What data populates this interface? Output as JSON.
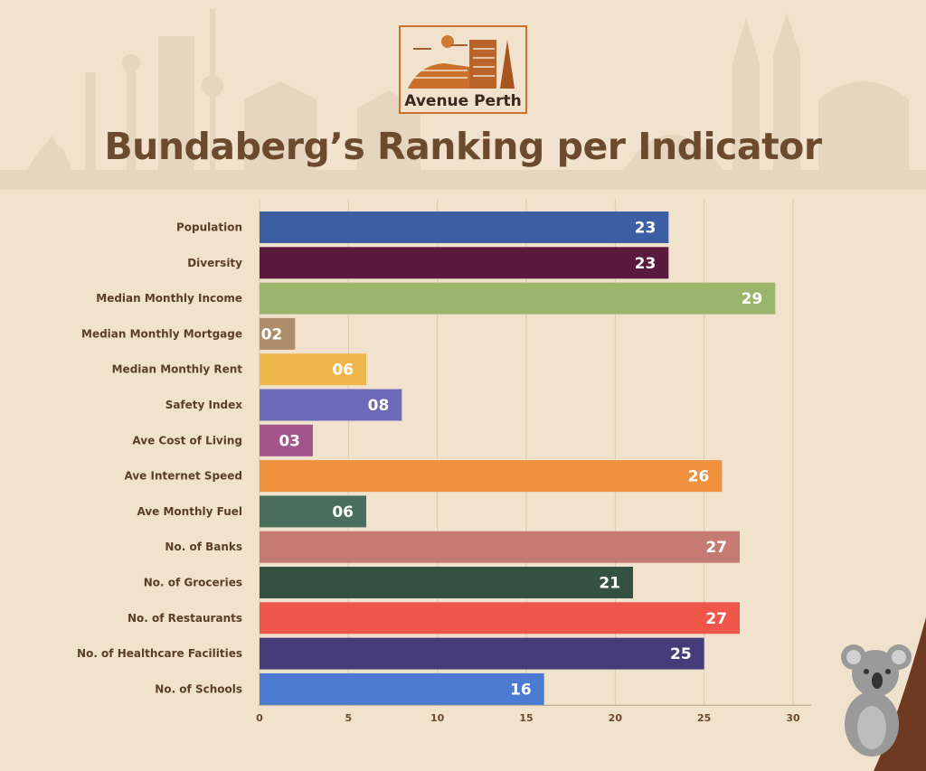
{
  "brand": {
    "name": "Avenue Perth",
    "logo_icon": "city-skyline-logo-icon",
    "accent": "#c9712c"
  },
  "header": {
    "title": "Bundaberg’s Ranking per Indicator"
  },
  "decor": {
    "skyline_icon": "city-skyline-icon",
    "mascot_icon": "koala-icon"
  },
  "chart_data": {
    "type": "bar",
    "orientation": "horizontal",
    "title": "Bundaberg’s Ranking per Indicator",
    "categories": [
      "Population",
      "Diversity",
      "Median Monthly Income",
      "Median Monthly Mortgage",
      "Median Monthly Rent",
      "Safety Index",
      "Ave Cost of Living",
      "Ave Internet Speed",
      "Ave Monthly Fuel",
      "No. of Banks",
      "No. of Groceries",
      "No. of Restaurants",
      "No. of Healthcare Facilities",
      "No. of Schools"
    ],
    "values": [
      23,
      23,
      29,
      2,
      6,
      8,
      3,
      26,
      6,
      27,
      21,
      27,
      25,
      16
    ],
    "value_labels": [
      "23",
      "23",
      "29",
      "02",
      "06",
      "08",
      "03",
      "26",
      "06",
      "27",
      "21",
      "27",
      "25",
      "16"
    ],
    "colors": [
      "#3c5ea3",
      "#5a1a3e",
      "#9bb56c",
      "#ad8d6a",
      "#f0b84c",
      "#6b69b8",
      "#a2548b",
      "#f0913f",
      "#4a6e5c",
      "#c57b72",
      "#355141",
      "#ee574a",
      "#463c7a",
      "#4a7bd0"
    ],
    "xlim": [
      0,
      30
    ],
    "xticks": [
      0,
      5,
      10,
      15,
      20,
      25,
      30
    ],
    "xlabel": "",
    "ylabel": "",
    "grid": true,
    "legend": "none"
  }
}
